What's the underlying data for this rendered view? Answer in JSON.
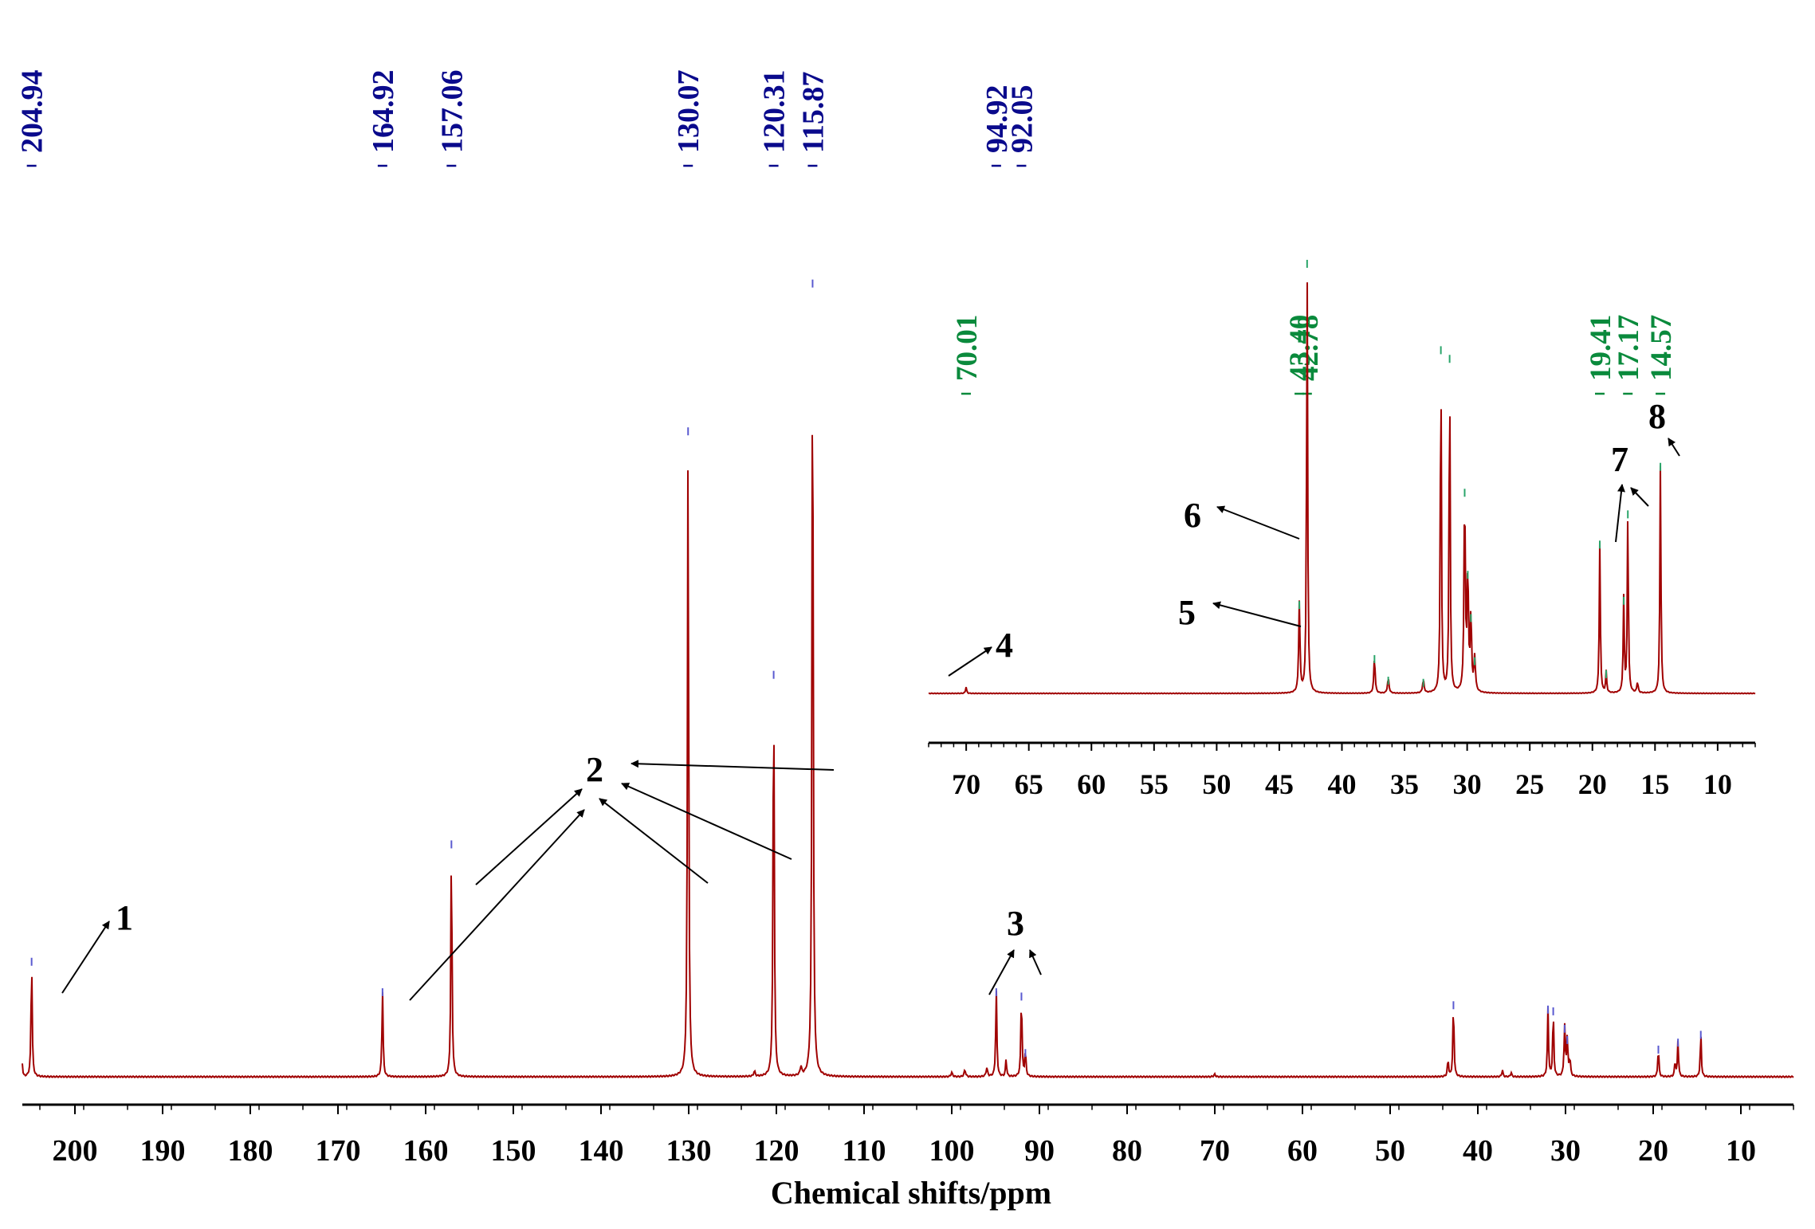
{
  "chart_data": [
    {
      "type": "line",
      "title": "",
      "xlabel": "Chemical shifts/ppm",
      "ylabel": "",
      "xlim": [
        206,
        4
      ],
      "ylim": [
        0,
        100
      ],
      "x_ticks": [
        200,
        190,
        180,
        170,
        160,
        150,
        140,
        130,
        120,
        110,
        100,
        90,
        80,
        70,
        60,
        50,
        40,
        30,
        20,
        10
      ],
      "tick_labels": [
        "200",
        "190",
        "180",
        "170",
        "160",
        "150",
        "140",
        "130",
        "120",
        "110",
        "100",
        "90",
        "80",
        "70",
        "60",
        "50",
        "40",
        "30",
        "20",
        "10"
      ],
      "grid": false,
      "series": [
        {
          "name": "13C NMR spectrum",
          "peaks": [
            {
              "ppm": 206.0,
              "height": 1.5,
              "width": 0.12
            },
            {
              "ppm": 204.94,
              "height": 13.5,
              "width": 0.15
            },
            {
              "ppm": 164.92,
              "height": 10.0,
              "width": 0.15
            },
            {
              "ppm": 157.06,
              "height": 27.0,
              "width": 0.15
            },
            {
              "ppm": 130.07,
              "height": 74.5,
              "width": 0.16
            },
            {
              "ppm": 122.5,
              "height": 0.6,
              "width": 0.2
            },
            {
              "ppm": 120.31,
              "height": 46.5,
              "width": 0.16
            },
            {
              "ppm": 117.2,
              "height": 1.0,
              "width": 0.2
            },
            {
              "ppm": 115.87,
              "height": 91.5,
              "width": 0.16
            },
            {
              "ppm": 100.0,
              "height": 0.5,
              "width": 0.2
            },
            {
              "ppm": 98.5,
              "height": 0.8,
              "width": 0.2
            },
            {
              "ppm": 96.0,
              "height": 1.0,
              "width": 0.2
            },
            {
              "ppm": 94.92,
              "height": 10.0,
              "width": 0.15
            },
            {
              "ppm": 93.8,
              "height": 2.0,
              "width": 0.15
            },
            {
              "ppm": 92.05,
              "height": 9.5,
              "width": 0.15
            },
            {
              "ppm": 91.6,
              "height": 3.0,
              "width": 0.15
            },
            {
              "ppm": 70.01,
              "height": 0.3,
              "width": 0.2
            },
            {
              "ppm": 43.4,
              "height": 2.0,
              "width": 0.15
            },
            {
              "ppm": 42.78,
              "height": 8.5,
              "width": 0.15
            },
            {
              "ppm": 37.2,
              "height": 0.8,
              "width": 0.15
            },
            {
              "ppm": 36.2,
              "height": 0.5,
              "width": 0.15
            },
            {
              "ppm": 32.0,
              "height": 8.0,
              "width": 0.14
            },
            {
              "ppm": 31.4,
              "height": 7.8,
              "width": 0.14
            },
            {
              "ppm": 30.1,
              "height": 5.8,
              "width": 0.16
            },
            {
              "ppm": 29.8,
              "height": 4.5,
              "width": 0.16
            },
            {
              "ppm": 29.5,
              "height": 2.0,
              "width": 0.16
            },
            {
              "ppm": 19.41,
              "height": 3.4,
              "width": 0.14
            },
            {
              "ppm": 17.5,
              "height": 1.8,
              "width": 0.14
            },
            {
              "ppm": 17.17,
              "height": 4.2,
              "width": 0.14
            },
            {
              "ppm": 14.57,
              "height": 5.1,
              "width": 0.14
            }
          ]
        }
      ],
      "peak_labels": [
        "204.94",
        "164.92",
        "157.06",
        "130.07",
        "120.31",
        "115.87",
        "94.92",
        "92.05"
      ],
      "annotations": [
        "1",
        "2",
        "3"
      ]
    },
    {
      "type": "line",
      "title": "",
      "xlabel": "",
      "ylabel": "",
      "xlim": [
        73,
        7
      ],
      "ylim": [
        0,
        100
      ],
      "x_ticks": [
        70,
        65,
        60,
        55,
        50,
        45,
        40,
        35,
        30,
        25,
        20,
        15,
        10
      ],
      "tick_labels": [
        "70",
        "65",
        "60",
        "55",
        "50",
        "45",
        "40",
        "35",
        "30",
        "25",
        "20",
        "15",
        "10"
      ],
      "grid": false,
      "series": [
        {
          "name": "13C NMR spectrum (inset, aliphatic region)",
          "peaks": [
            {
              "ppm": 70.01,
              "height": 1.5,
              "width": 0.1
            },
            {
              "ppm": 43.4,
              "height": 21.0,
              "width": 0.12
            },
            {
              "ppm": 42.78,
              "height": 100.0,
              "width": 0.1
            },
            {
              "ppm": 37.4,
              "height": 8.5,
              "width": 0.12
            },
            {
              "ppm": 36.3,
              "height": 3.5,
              "width": 0.14
            },
            {
              "ppm": 33.5,
              "height": 3.0,
              "width": 0.14
            },
            {
              "ppm": 32.1,
              "height": 80.0,
              "width": 0.1
            },
            {
              "ppm": 31.4,
              "height": 78.0,
              "width": 0.1
            },
            {
              "ppm": 30.2,
              "height": 47.0,
              "width": 0.12
            },
            {
              "ppm": 29.95,
              "height": 28.0,
              "width": 0.12
            },
            {
              "ppm": 29.7,
              "height": 18.0,
              "width": 0.12
            },
            {
              "ppm": 29.4,
              "height": 8.0,
              "width": 0.14
            },
            {
              "ppm": 19.41,
              "height": 35.0,
              "width": 0.1
            },
            {
              "ppm": 18.9,
              "height": 5.0,
              "width": 0.1
            },
            {
              "ppm": 17.5,
              "height": 22.0,
              "width": 0.1
            },
            {
              "ppm": 17.17,
              "height": 42.0,
              "width": 0.1
            },
            {
              "ppm": 16.4,
              "height": 2.5,
              "width": 0.12
            },
            {
              "ppm": 14.57,
              "height": 53.0,
              "width": 0.1
            }
          ]
        }
      ],
      "peak_labels": [
        "70.01",
        "43.40",
        "42.78",
        "19.41",
        "17.17",
        "14.57"
      ],
      "annotations": [
        "4",
        "5",
        "6",
        "7",
        "8"
      ]
    }
  ]
}
